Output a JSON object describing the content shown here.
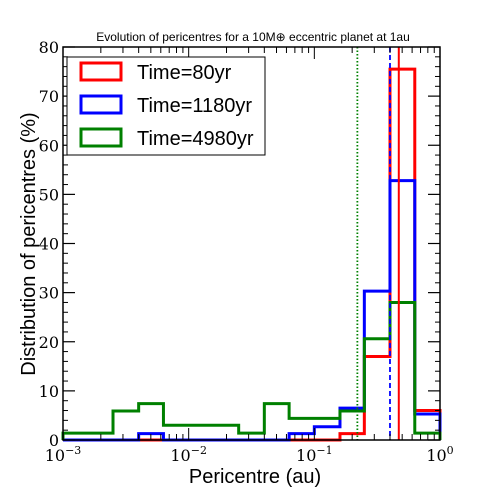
{
  "chart_data": {
    "type": "histogram",
    "title": "Evolution of pericentres for a 10M⊕ eccentric planet at 1au",
    "xlabel": "Pericentre (au)",
    "ylabel": "Distribution of pericentres (%)",
    "xscale": "log",
    "xlim": [
      0.001,
      1
    ],
    "ylim": [
      0,
      80
    ],
    "x_ticks": [
      {
        "base": "10",
        "exp": "−3",
        "value": 0.001
      },
      {
        "base": "10",
        "exp": "−2",
        "value": 0.01
      },
      {
        "base": "10",
        "exp": "−1",
        "value": 0.1
      },
      {
        "base": "10",
        "exp": "0",
        "value": 1
      }
    ],
    "y_ticks": [
      {
        "label": "0",
        "value": 0
      },
      {
        "label": "10",
        "value": 10
      },
      {
        "label": "20",
        "value": 20
      },
      {
        "label": "30",
        "value": 30
      },
      {
        "label": "40",
        "value": 40
      },
      {
        "label": "50",
        "value": 50
      },
      {
        "label": "60",
        "value": 60
      },
      {
        "label": "70",
        "value": 70
      },
      {
        "label": "80",
        "value": 80
      }
    ],
    "bin_edges": [
      0.001,
      0.0016,
      0.0025,
      0.004,
      0.0063,
      0.01,
      0.016,
      0.025,
      0.04,
      0.063,
      0.1,
      0.16,
      0.25,
      0.4,
      0.63,
      1
    ],
    "series": [
      {
        "name": "Time=80yr",
        "color": "#ff0000",
        "values": [
          0,
          0,
          0,
          0,
          0,
          0,
          0,
          0,
          0,
          0,
          0,
          1.3,
          17,
          75.5,
          6
        ]
      },
      {
        "name": "Time=1180yr",
        "color": "#0000ff",
        "values": [
          0,
          0,
          0,
          1.3,
          0,
          0,
          0,
          0,
          0,
          1.3,
          2.7,
          6.5,
          30.3,
          52.8,
          5.3
        ]
      },
      {
        "name": "Time=4980yr",
        "color": "#008000",
        "values": [
          1.4,
          1.4,
          5.9,
          7.4,
          3,
          3,
          3,
          1.4,
          7.4,
          4.4,
          4.4,
          5.9,
          20.6,
          28,
          1.4
        ]
      }
    ],
    "reference_lines": [
      {
        "x": 0.22,
        "color": "#008000",
        "style": "dotted"
      },
      {
        "x": 0.4,
        "color": "#0000ff",
        "style": "dashed"
      },
      {
        "x": 0.47,
        "color": "#ff0000",
        "style": "solid"
      }
    ],
    "legend_position": "top-left"
  }
}
